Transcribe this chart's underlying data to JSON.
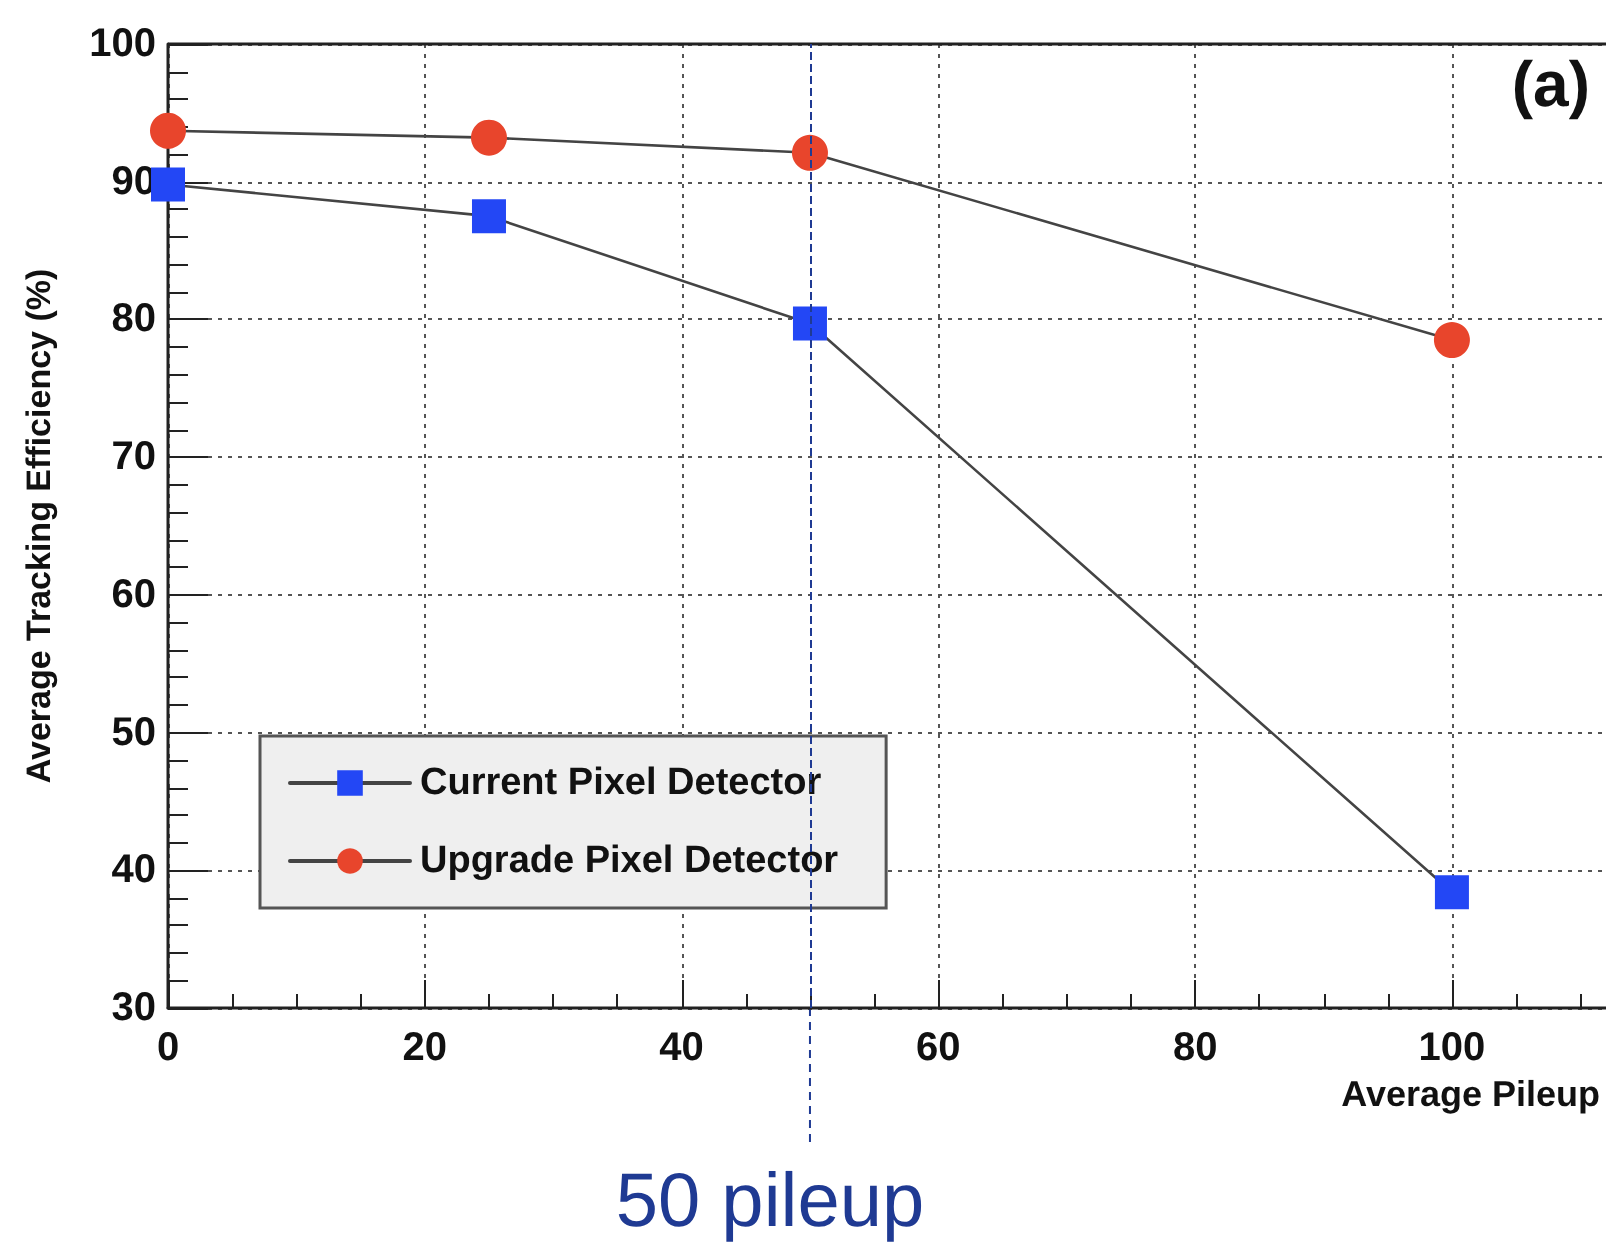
{
  "chart_data": {
    "type": "line",
    "xlabel": "Average Pileup",
    "ylabel": "Average Tracking Efficiency (%)",
    "x": [
      0,
      25,
      50,
      100
    ],
    "series": [
      {
        "name": "Current Pixel Detector",
        "color": "#2347f5",
        "marker": "square",
        "values": [
          89.8,
          87.5,
          79.7,
          38.4
        ]
      },
      {
        "name": "Upgrade Pixel Detector",
        "color": "#e8452c",
        "marker": "circle",
        "values": [
          93.7,
          93.2,
          92.1,
          78.5
        ]
      }
    ],
    "xlim": [
      0,
      112
    ],
    "xticks": [
      0,
      20,
      40,
      60,
      80,
      100
    ],
    "ylim": [
      30,
      100
    ],
    "yticks": [
      30,
      40,
      50,
      60,
      70,
      80,
      90,
      100
    ],
    "grid": true,
    "legend": "bottom left",
    "ref_lines": [
      {
        "axis": "x",
        "value": 50,
        "label": "50 pileup",
        "color": "#1f3a93",
        "line_style": "dashed"
      }
    ],
    "annotations": [
      "(a)"
    ]
  }
}
